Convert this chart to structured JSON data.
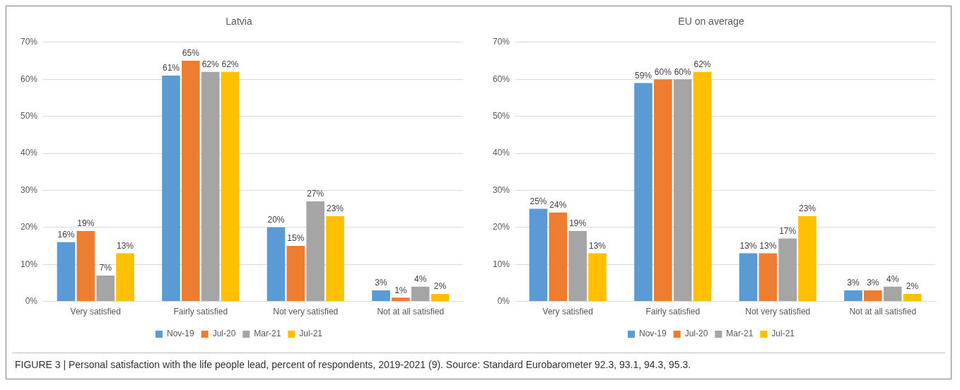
{
  "chart_data": [
    {
      "type": "bar",
      "title": "Latvia",
      "categories": [
        "Very satisfied",
        "Fairly satisfied",
        "Not very satisfied",
        "Not at all satisfied"
      ],
      "series": [
        {
          "name": "Nov-19",
          "color": "#5b9bd5",
          "values": [
            16,
            61,
            20,
            3
          ],
          "value_labels": [
            "16%",
            "61%",
            "20%",
            "3%"
          ]
        },
        {
          "name": "Jul-20",
          "color": "#ed7d31",
          "values": [
            19,
            65,
            15,
            1
          ],
          "value_labels": [
            "19%",
            "65%",
            "15%",
            "1%"
          ]
        },
        {
          "name": "Mar-21",
          "color": "#a5a5a5",
          "values": [
            7,
            62,
            27,
            4
          ],
          "value_labels": [
            "7%",
            "62%",
            "27%",
            "4%"
          ]
        },
        {
          "name": "Jul-21",
          "color": "#ffc000",
          "values": [
            13,
            62,
            23,
            2
          ],
          "value_labels": [
            "13%",
            "62%",
            "23%",
            "2%"
          ]
        }
      ],
      "ylim": [
        0,
        70
      ],
      "yticks": [
        {
          "value": 0,
          "label": "0%"
        },
        {
          "value": 10,
          "label": "10%"
        },
        {
          "value": 20,
          "label": "20%"
        },
        {
          "value": 30,
          "label": "30%"
        },
        {
          "value": 40,
          "label": "40%"
        },
        {
          "value": 50,
          "label": "50%"
        },
        {
          "value": 60,
          "label": "60%"
        },
        {
          "value": 70,
          "label": "70%"
        }
      ],
      "grid": "y",
      "legend": "bottom",
      "annotations": [
        "FIGURE 3 | Personal satisfaction with the life people lead, percent of respondents, 2019-2021 (9). Source: Standard Eurobarometer 92.3, 93.1, 94.3, 95.3."
      ]
    },
    {
      "type": "bar",
      "title": "EU on average",
      "categories": [
        "Very satisfied",
        "Fairly satisfied",
        "Not very satisfied",
        "Not at all satisfied"
      ],
      "series": [
        {
          "name": "Nov-19",
          "color": "#5b9bd5",
          "values": [
            25,
            59,
            13,
            3
          ],
          "value_labels": [
            "25%",
            "59%",
            "13%",
            "3%"
          ]
        },
        {
          "name": "Jul-20",
          "color": "#ed7d31",
          "values": [
            24,
            60,
            13,
            3
          ],
          "value_labels": [
            "24%",
            "60%",
            "13%",
            "3%"
          ]
        },
        {
          "name": "Mar-21",
          "color": "#a5a5a5",
          "values": [
            19,
            60,
            17,
            4
          ],
          "value_labels": [
            "19%",
            "60%",
            "17%",
            "4%"
          ]
        },
        {
          "name": "Jul-21",
          "color": "#ffc000",
          "values": [
            13,
            62,
            23,
            2
          ],
          "value_labels": [
            "13%",
            "62%",
            "23%",
            "2%"
          ]
        }
      ],
      "ylim": [
        0,
        70
      ],
      "yticks": [
        {
          "value": 0,
          "label": "0%"
        },
        {
          "value": 10,
          "label": "10%"
        },
        {
          "value": 20,
          "label": "20%"
        },
        {
          "value": 30,
          "label": "30%"
        },
        {
          "value": 40,
          "label": "40%"
        },
        {
          "value": 50,
          "label": "50%"
        },
        {
          "value": 60,
          "label": "60%"
        },
        {
          "value": 70,
          "label": "70%"
        }
      ],
      "grid": "y",
      "legend": "bottom"
    }
  ]
}
